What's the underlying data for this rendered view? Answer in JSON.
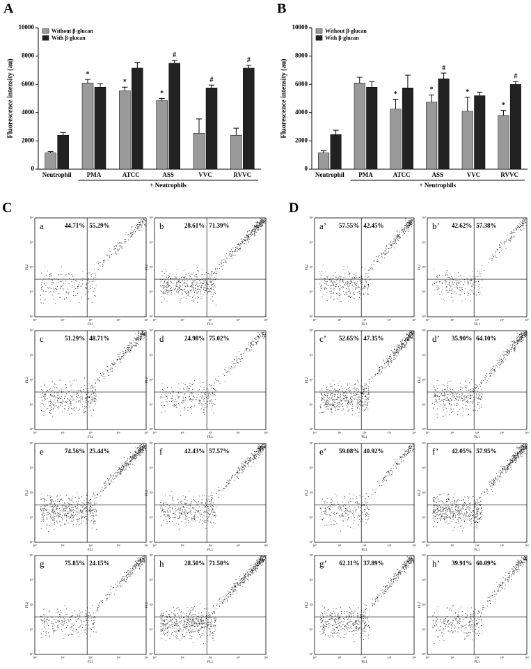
{
  "chart_data": [
    {
      "type": "bar",
      "panel": "A",
      "ylabel": "Fluorescence intensity (au)",
      "categories": [
        "Neutrophil",
        "PMA",
        "ATCC",
        "ASS",
        "VVC",
        "RVVC"
      ],
      "group_label": "+ Neutrophils",
      "ylim": [
        0,
        10000
      ],
      "yticks": [
        0,
        2000,
        4000,
        6000,
        8000,
        10000
      ],
      "series": [
        {
          "name": "Without β-glucan",
          "color": "#9a9a9a",
          "values": [
            1150,
            6100,
            5550,
            4850,
            2550,
            2400
          ],
          "errors": [
            100,
            250,
            250,
            150,
            1000,
            500
          ],
          "annotations": [
            null,
            "*",
            "*",
            "*",
            null,
            null
          ]
        },
        {
          "name": "With β-glucan",
          "color": "#222222",
          "values": [
            2400,
            5800,
            7150,
            7500,
            5750,
            7150
          ],
          "errors": [
            200,
            250,
            400,
            200,
            200,
            200
          ],
          "annotations": [
            null,
            null,
            null,
            "#",
            "#",
            "#"
          ]
        }
      ]
    },
    {
      "type": "bar",
      "panel": "B",
      "ylabel": "Fluorescence intensity (au)",
      "categories": [
        "Neutrophil",
        "PMA",
        "ATCC",
        "ASS",
        "VVC",
        "RVVC"
      ],
      "group_label": "+ Neutrophils",
      "ylim": [
        0,
        10000
      ],
      "yticks": [
        0,
        2000,
        4000,
        6000,
        8000,
        10000
      ],
      "series": [
        {
          "name": "Without β-glucan",
          "color": "#9a9a9a",
          "values": [
            1150,
            6100,
            4250,
            4750,
            4100,
            3800
          ],
          "errors": [
            150,
            400,
            700,
            500,
            1000,
            350
          ],
          "annotations": [
            null,
            null,
            "*",
            "*",
            "*",
            "*"
          ]
        },
        {
          "name": "With β-glucan",
          "color": "#222222",
          "values": [
            2450,
            5800,
            5750,
            6400,
            5200,
            6000
          ],
          "errors": [
            300,
            400,
            900,
            400,
            250,
            200
          ],
          "annotations": [
            null,
            null,
            null,
            "#",
            null,
            "#"
          ]
        }
      ]
    }
  ],
  "flow_panels": {
    "x_label": "FL1",
    "y_label": "FL2",
    "ticks": [
      "10⁰",
      "10¹",
      "10²",
      "10³",
      "10⁴"
    ],
    "panels": [
      {
        "label": "C",
        "plots": [
          {
            "label": "a",
            "left": "44.71%",
            "right": "55.29%"
          },
          {
            "label": "b",
            "left": "28.61%",
            "right": "71.39%"
          },
          {
            "label": "c",
            "left": "51.29%",
            "right": "48.71%"
          },
          {
            "label": "d",
            "left": "24.98%",
            "right": "75.02%"
          },
          {
            "label": "e",
            "left": "74.56%",
            "right": "25.44%"
          },
          {
            "label": "f",
            "left": "42.43%",
            "right": "57.57%"
          },
          {
            "label": "g",
            "left": "75.85%",
            "right": "24.15%"
          },
          {
            "label": "h",
            "left": "28.50%",
            "right": "71.50%"
          }
        ]
      },
      {
        "label": "D",
        "plots": [
          {
            "label": "a’",
            "left": "57.55%",
            "right": "42.45%"
          },
          {
            "label": "b’",
            "left": "42.62%",
            "right": "57.38%"
          },
          {
            "label": "c’",
            "left": "52.65%",
            "right": "47.35%"
          },
          {
            "label": "d’",
            "left": "35.90%",
            "right": "64.10%"
          },
          {
            "label": "e’",
            "left": "59.08%",
            "right": "40.92%"
          },
          {
            "label": "f’",
            "left": "42.05%",
            "right": "57.95%"
          },
          {
            "label": "g’",
            "left": "62.11%",
            "right": "37.89%"
          },
          {
            "label": "h’",
            "left": "39.91%",
            "right": "60.09%"
          }
        ]
      }
    ]
  }
}
